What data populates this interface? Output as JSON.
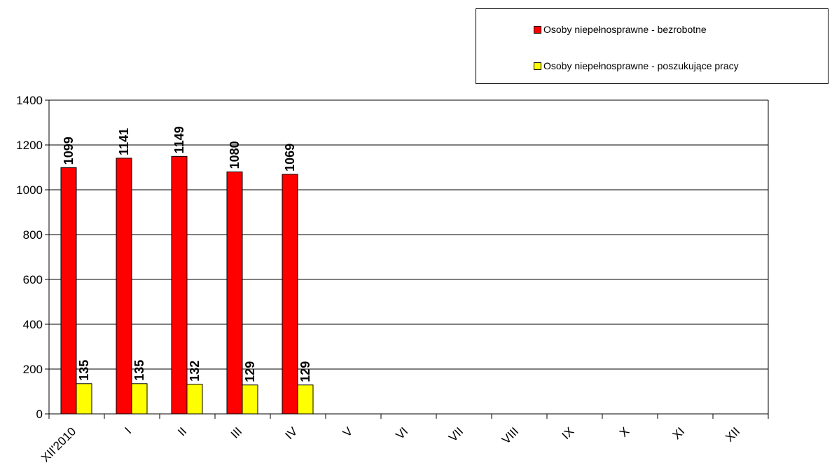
{
  "chart_data": {
    "type": "bar",
    "categories": [
      "XII'2010",
      "I",
      "II",
      "III",
      "IV",
      "V",
      "VI",
      "VII",
      "VIII",
      "IX",
      "X",
      "XI",
      "XII"
    ],
    "series": [
      {
        "name": "Osoby niepełnosprawne - bezrobotne",
        "color": "#ff0000",
        "values": [
          1099,
          1141,
          1149,
          1080,
          1069,
          null,
          null,
          null,
          null,
          null,
          null,
          null,
          null
        ]
      },
      {
        "name": "Osoby niepełnosprawne - poszukujące pracy",
        "color": "#ffff00",
        "values": [
          135,
          135,
          132,
          129,
          129,
          null,
          null,
          null,
          null,
          null,
          null,
          null,
          null
        ]
      }
    ],
    "yticks": [
      0,
      200,
      400,
      600,
      800,
      1000,
      1200,
      1400
    ],
    "ylim": [
      0,
      1400
    ],
    "grid": true,
    "legend_position": "top-right"
  }
}
